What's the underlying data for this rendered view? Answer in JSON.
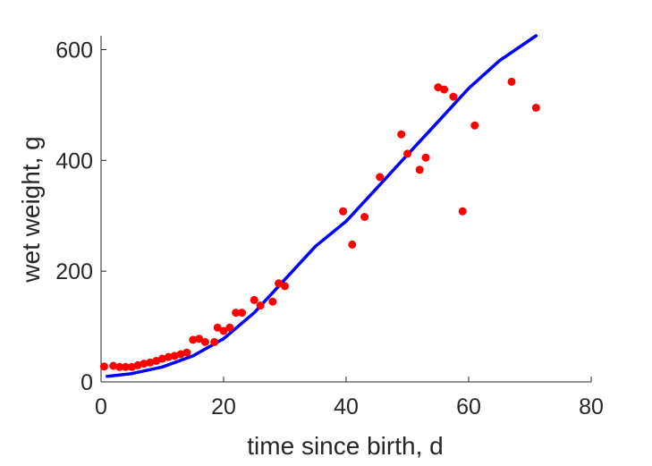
{
  "chart_data": {
    "type": "scatter",
    "title": "",
    "xlabel": "time since birth, d",
    "ylabel": "wet weight, g",
    "xlim": [
      0,
      80
    ],
    "ylim": [
      0,
      625
    ],
    "xticks": [
      0,
      20,
      40,
      60,
      80
    ],
    "yticks": [
      0,
      200,
      400,
      600
    ],
    "grid": false,
    "colors": {
      "points": "#ff0000",
      "curve": "#0000ff",
      "axis": "#262626"
    },
    "series": [
      {
        "kind": "points",
        "x": [
          0.5,
          2,
          3,
          4,
          5,
          6,
          7,
          8,
          9,
          10,
          11,
          12,
          13,
          14,
          15,
          16,
          17,
          18.5,
          19,
          20,
          21,
          22,
          23,
          25,
          26,
          28,
          29,
          30,
          39.5,
          41,
          43,
          45.5,
          49,
          50,
          52,
          53,
          55,
          56,
          57.5,
          59,
          61,
          67,
          71
        ],
        "y": [
          28,
          29,
          27,
          27,
          27,
          30,
          33,
          35,
          38,
          42,
          45,
          47,
          50,
          53,
          76,
          78,
          72,
          72,
          98,
          92,
          98,
          125,
          125,
          148,
          138,
          145,
          178,
          173,
          308,
          248,
          298,
          370,
          447,
          412,
          383,
          405,
          532,
          528,
          515,
          308,
          463,
          542,
          495
        ]
      },
      {
        "kind": "line",
        "x": [
          1,
          5,
          10,
          15,
          20,
          25,
          30,
          35,
          40,
          45,
          50,
          55,
          60,
          65,
          71
        ],
        "y": [
          10,
          15,
          27,
          47,
          78,
          125,
          185,
          245,
          290,
          350,
          410,
          470,
          530,
          580,
          625
        ]
      }
    ]
  }
}
